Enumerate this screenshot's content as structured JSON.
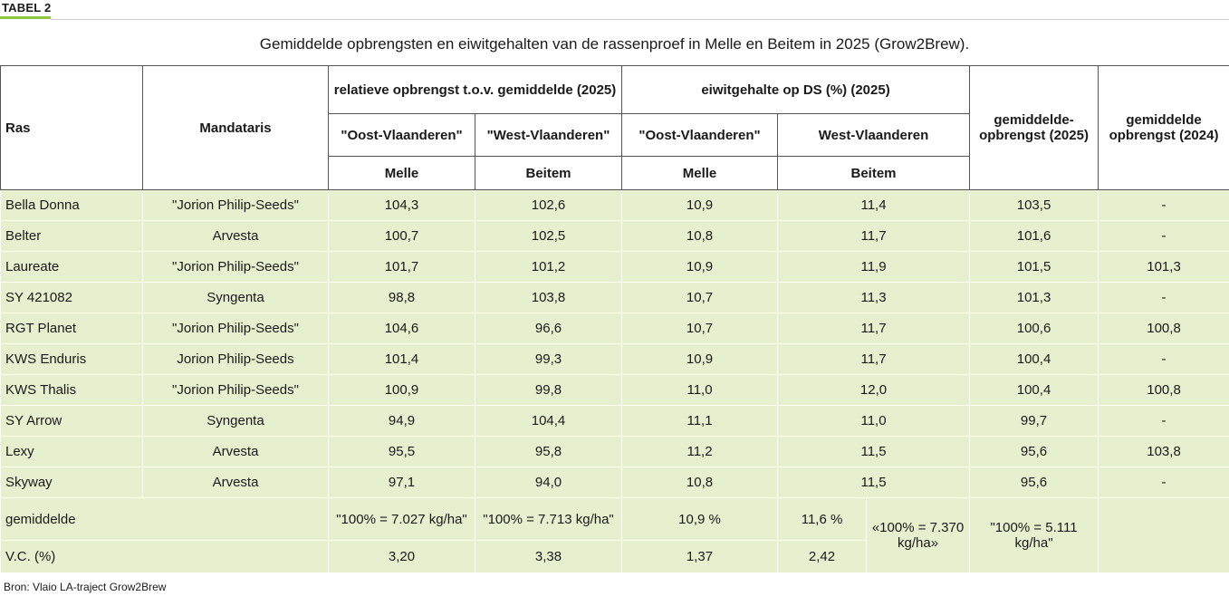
{
  "label": "TABEL 2",
  "caption": "Gemiddelde opbrengsten en eiwitgehalten van de rassenproef in Melle en Beitem in 2025 (Grow2Brew).",
  "header": {
    "ras": "Ras",
    "mandataris": "Mandataris",
    "rel_opbrengst": "relatieve opbrengst t.o.v. gemiddelde (2025)",
    "eiwit": "eiwitgehalte op DS (%) (2025)",
    "gem_2025": "gemiddelde-opbrengst (2025)",
    "gem_2024": "gemiddelde opbrengst (2024)",
    "oost_1": "\"Oost-Vlaanderen\"",
    "west_1": "\"West-Vlaanderen\"",
    "oost_2": "\"Oost-Vlaanderen\"",
    "west_2": "West-Vlaanderen",
    "melle_1": "Melle",
    "beitem_1": "Beitem",
    "melle_2": "Melle",
    "beitem_2": "Beitem"
  },
  "rows": [
    {
      "ras": "Bella Donna",
      "mandataris": "\"Jorion Philip-Seeds\"",
      "opb_melle": "104,3",
      "opb_beitem": "102,6",
      "eiwit_melle": "10,9",
      "eiwit_beitem": "11,4",
      "gem_2025": "103,5",
      "gem_2024": "-"
    },
    {
      "ras": "Belter",
      "mandataris": "Arvesta",
      "opb_melle": "100,7",
      "opb_beitem": "102,5",
      "eiwit_melle": "10,8",
      "eiwit_beitem": "11,7",
      "gem_2025": "101,6",
      "gem_2024": "-"
    },
    {
      "ras": "Laureate",
      "mandataris": "\"Jorion Philip-Seeds\"",
      "opb_melle": "101,7",
      "opb_beitem": "101,2",
      "eiwit_melle": "10,9",
      "eiwit_beitem": "11,9",
      "gem_2025": "101,5",
      "gem_2024": "101,3"
    },
    {
      "ras": "SY 421082",
      "mandataris": "Syngenta",
      "opb_melle": "98,8",
      "opb_beitem": "103,8",
      "eiwit_melle": "10,7",
      "eiwit_beitem": "11,3",
      "gem_2025": "101,3",
      "gem_2024": "-"
    },
    {
      "ras": "RGT Planet",
      "mandataris": "\"Jorion Philip-Seeds\"",
      "opb_melle": "104,6",
      "opb_beitem": "96,6",
      "eiwit_melle": "10,7",
      "eiwit_beitem": "11,7",
      "gem_2025": "100,6",
      "gem_2024": "100,8"
    },
    {
      "ras": "KWS Enduris",
      "mandataris": "Jorion Philip-Seeds",
      "opb_melle": "101,4",
      "opb_beitem": "99,3",
      "eiwit_melle": "10,9",
      "eiwit_beitem": "11,7",
      "gem_2025": "100,4",
      "gem_2024": "-"
    },
    {
      "ras": "KWS Thalis",
      "mandataris": "\"Jorion Philip-Seeds\"",
      "opb_melle": "100,9",
      "opb_beitem": "99,8",
      "eiwit_melle": "11,0",
      "eiwit_beitem": "12,0",
      "gem_2025": "100,4",
      "gem_2024": "100,8"
    },
    {
      "ras": "SY Arrow",
      "mandataris": "Syngenta",
      "opb_melle": "94,9",
      "opb_beitem": "104,4",
      "eiwit_melle": "11,1",
      "eiwit_beitem": "11,0",
      "gem_2025": "99,7",
      "gem_2024": "-"
    },
    {
      "ras": "Lexy",
      "mandataris": "Arvesta",
      "opb_melle": "95,5",
      "opb_beitem": "95,8",
      "eiwit_melle": "11,2",
      "eiwit_beitem": "11,5",
      "gem_2025": "95,6",
      "gem_2024": "103,8"
    },
    {
      "ras": "Skyway",
      "mandataris": "Arvesta",
      "opb_melle": "97,1",
      "opb_beitem": "94,0",
      "eiwit_melle": "10,8",
      "eiwit_beitem": "11,5",
      "gem_2025": "95,6",
      "gem_2024": "-"
    }
  ],
  "gemiddelde": {
    "label": "gemiddelde",
    "opb_melle": "\"100% = 7.027 kg/ha\"",
    "opb_beitem": "\"100% = 7.713 kg/ha\"",
    "eiwit_melle": "10,9 %",
    "eiwit_beitem": "11,6 %",
    "eiwit_total": "«100% = 7.370 kg/ha»",
    "gem_2025": "\"100% = 5.111 kg/ha\""
  },
  "vc": {
    "label": "V.C. (%)",
    "opb_melle": "3,20",
    "opb_beitem": "3,38",
    "eiwit_melle": "1,37",
    "eiwit_beitem": "2,42"
  },
  "source": "Bron: Vlaio LA-traject Grow2Brew"
}
